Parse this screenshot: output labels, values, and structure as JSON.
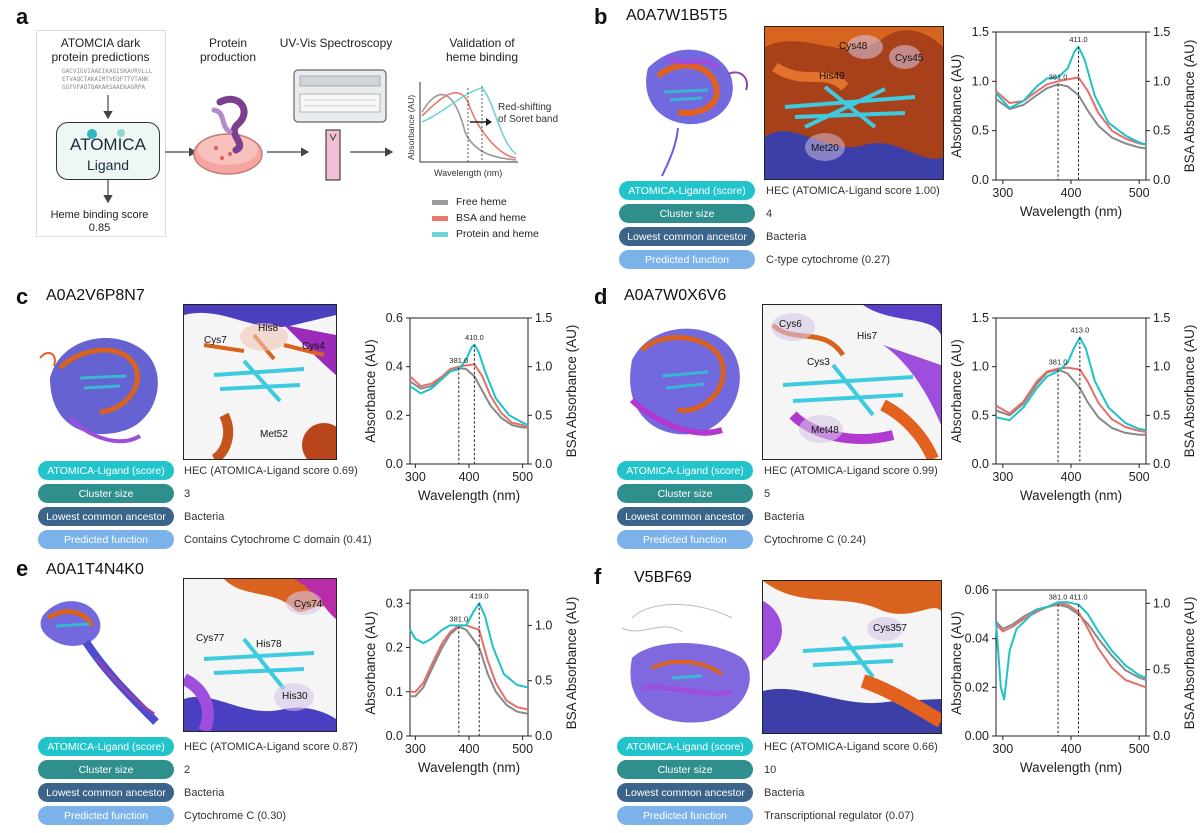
{
  "panel_a": {
    "letter": "a",
    "step1_title": "ATOMCIA dark\nprotein predictions",
    "seq": [
      "GACVIGVIAAEIKAGISKAVRVLLL",
      "ETVAQCTAKAIMTVEQFTTVTANK",
      "GGFVFAQTQAKARSAAEKAGRPA"
    ],
    "atomica_box_title": "ATOMICA",
    "atomica_box_sub": "Ligand",
    "score_label": "Heme binding score",
    "score_value": "0.85",
    "step2_title": "Protein\nproduction",
    "step3_title": "UV-Vis Spectroscopy",
    "step4_title": "Validation of\nheme binding",
    "mini_ylabel": "Absorbance (AU)",
    "mini_xlabel": "Wavelength (nm)",
    "annot": "Red-shifting\nof Soret band",
    "legend": [
      {
        "label": "Free heme",
        "color": "#9a9a9a"
      },
      {
        "label": "BSA and heme",
        "color": "#e9796e"
      },
      {
        "label": "Protein and heme",
        "color": "#6fd5d8"
      }
    ]
  },
  "row_labels": [
    "ATOMICA-Ligand (score)",
    "Cluster size",
    "Lowest common ancestor",
    "Predicted function"
  ],
  "panels": [
    {
      "key": "b",
      "letter": "b",
      "id": "A0A7W1B5T5",
      "residues": [
        "Cys48",
        "His49",
        "Cys45",
        "Met20"
      ],
      "values": [
        "HEC (ATOMICA-Ligand score 1.00)",
        "4",
        "Bacteria",
        "C-type cytochrome (0.27)"
      ]
    },
    {
      "key": "c",
      "letter": "c",
      "id": "A0A2V6P8N7",
      "residues": [
        "Cys7",
        "His8",
        "Cys4",
        "Met52"
      ],
      "values": [
        "HEC (ATOMICA-Ligand score 0.69)",
        "3",
        "Bacteria",
        "Contains Cytochrome C domain (0.41)"
      ]
    },
    {
      "key": "d",
      "letter": "d",
      "id": "A0A7W0X6V6",
      "residues": [
        "Cys6",
        "His7",
        "Cys3",
        "Met48"
      ],
      "values": [
        "HEC (ATOMICA-Ligand score 0.99)",
        "5",
        "Bacteria",
        "Cytochrome C (0.24)"
      ]
    },
    {
      "key": "e",
      "letter": "e",
      "id": "A0A1T4N4K0",
      "residues": [
        "Cys74",
        "Cys77",
        "His78",
        "His30"
      ],
      "values": [
        "HEC (ATOMICA-Ligand score 0.87)",
        "2",
        "Bacteria",
        "Cytochrome C (0.30)"
      ]
    },
    {
      "key": "f",
      "letter": "f",
      "id": "V5BF69",
      "residues": [
        "Cys357"
      ],
      "values": [
        "HEC (ATOMICA-Ligand score 0.66)",
        "10",
        "Bacteria",
        "Transcriptional regulator (0.07)"
      ]
    }
  ],
  "chart_data": [
    {
      "panel": "b",
      "type": "line",
      "xlabel": "Wavelength (nm)",
      "ylabel": "Absorbance (AU)",
      "y2label": "BSA Absorbance (AU)",
      "xlim": [
        290,
        510
      ],
      "ylim": [
        0,
        1.5
      ],
      "y2lim": [
        0,
        1.5
      ],
      "xticks": [
        "300",
        "400",
        "500"
      ],
      "yticks": [
        "0.0",
        "0.5",
        "1.0",
        "1.5"
      ],
      "y2ticks": [
        "0.0",
        "0.5",
        "1.0",
        "1.5"
      ],
      "peaks": [
        {
          "x": 381,
          "label": "381.0",
          "y": 0.97
        },
        {
          "x": 411,
          "label": "411.0",
          "y": 1.35
        }
      ],
      "series": [
        {
          "name": "Free heme",
          "color": "#888888",
          "x": [
            290,
            310,
            330,
            350,
            365,
            381,
            395,
            411,
            425,
            440,
            460,
            480,
            500,
            510
          ],
          "y": [
            0.82,
            0.72,
            0.76,
            0.86,
            0.93,
            0.97,
            0.95,
            0.86,
            0.7,
            0.55,
            0.43,
            0.37,
            0.33,
            0.32
          ]
        },
        {
          "name": "BSA and heme",
          "color": "#e46f6a",
          "x": [
            290,
            310,
            330,
            350,
            365,
            381,
            395,
            411,
            425,
            440,
            460,
            480,
            500,
            510
          ],
          "y": [
            0.9,
            0.78,
            0.8,
            0.9,
            0.97,
            1.0,
            1.02,
            1.04,
            0.9,
            0.68,
            0.5,
            0.42,
            0.37,
            0.36
          ]
        },
        {
          "name": "Protein and heme",
          "color": "#1cc3c8",
          "x": [
            290,
            310,
            330,
            350,
            365,
            381,
            395,
            405,
            411,
            420,
            435,
            455,
            480,
            500,
            510
          ],
          "y": [
            0.88,
            0.73,
            0.8,
            0.95,
            1.03,
            1.04,
            1.13,
            1.3,
            1.35,
            1.22,
            0.85,
            0.58,
            0.45,
            0.38,
            0.36
          ]
        }
      ]
    },
    {
      "panel": "c",
      "type": "line",
      "xlabel": "Wavelength (nm)",
      "ylabel": "Absorbance (AU)",
      "y2label": "BSA Absorbance (AU)",
      "xlim": [
        290,
        510
      ],
      "ylim": [
        0,
        0.6
      ],
      "y2lim": [
        0,
        1.5
      ],
      "xticks": [
        "300",
        "400",
        "500"
      ],
      "yticks": [
        "0.0",
        "0.2",
        "0.4",
        "0.6"
      ],
      "y2ticks": [
        "0.0",
        "0.5",
        "1.0",
        "1.5"
      ],
      "peaks": [
        {
          "x": 381,
          "label": "381.0",
          "y": 0.395
        },
        {
          "x": 410,
          "label": "410.0",
          "y": 0.49
        }
      ],
      "series": [
        {
          "name": "Free heme",
          "color": "#888888",
          "x": [
            290,
            310,
            330,
            350,
            365,
            381,
            395,
            410,
            425,
            440,
            460,
            480,
            500,
            510
          ],
          "y": [
            0.34,
            0.31,
            0.32,
            0.35,
            0.38,
            0.395,
            0.39,
            0.36,
            0.3,
            0.24,
            0.19,
            0.16,
            0.15,
            0.15
          ]
        },
        {
          "name": "BSA and heme",
          "color": "#e46f6a",
          "x": [
            290,
            310,
            330,
            350,
            365,
            381,
            395,
            410,
            425,
            440,
            460,
            480,
            500,
            510
          ],
          "y": [
            0.36,
            0.32,
            0.33,
            0.36,
            0.39,
            0.4,
            0.405,
            0.41,
            0.36,
            0.28,
            0.21,
            0.17,
            0.16,
            0.15
          ]
        },
        {
          "name": "Protein and heme",
          "color": "#1cc3c8",
          "x": [
            290,
            310,
            330,
            350,
            365,
            381,
            395,
            405,
            410,
            418,
            430,
            450,
            475,
            500,
            510
          ],
          "y": [
            0.32,
            0.29,
            0.31,
            0.35,
            0.38,
            0.39,
            0.43,
            0.48,
            0.49,
            0.46,
            0.38,
            0.27,
            0.2,
            0.17,
            0.16
          ]
        }
      ]
    },
    {
      "panel": "d",
      "type": "line",
      "xlabel": "Wavelength (nm)",
      "ylabel": "Absorbance (AU)",
      "y2label": "BSA Absorbance (AU)",
      "xlim": [
        290,
        510
      ],
      "ylim": [
        0,
        1.5
      ],
      "y2lim": [
        0,
        1.5
      ],
      "xticks": [
        "300",
        "400",
        "500"
      ],
      "yticks": [
        "0.0",
        "0.5",
        "1.0",
        "1.5"
      ],
      "y2ticks": [
        "0.0",
        "0.5",
        "1.0",
        "1.5"
      ],
      "peaks": [
        {
          "x": 381,
          "label": "381.0",
          "y": 0.97
        },
        {
          "x": 413,
          "label": "413.0",
          "y": 1.3
        }
      ],
      "series": [
        {
          "name": "Free heme",
          "color": "#888888",
          "x": [
            290,
            310,
            330,
            350,
            365,
            381,
            395,
            413,
            425,
            440,
            460,
            480,
            500,
            510
          ],
          "y": [
            0.55,
            0.5,
            0.62,
            0.82,
            0.94,
            0.97,
            0.93,
            0.78,
            0.63,
            0.48,
            0.37,
            0.32,
            0.3,
            0.3
          ]
        },
        {
          "name": "BSA and heme",
          "color": "#e46f6a",
          "x": [
            290,
            310,
            330,
            350,
            365,
            381,
            395,
            413,
            425,
            440,
            460,
            480,
            500,
            510
          ],
          "y": [
            0.6,
            0.52,
            0.64,
            0.85,
            0.95,
            0.98,
            0.99,
            0.97,
            0.84,
            0.63,
            0.46,
            0.38,
            0.34,
            0.33
          ]
        },
        {
          "name": "Protein and heme",
          "color": "#1cc3c8",
          "x": [
            290,
            310,
            330,
            350,
            365,
            381,
            395,
            405,
            413,
            422,
            435,
            455,
            480,
            500,
            510
          ],
          "y": [
            0.48,
            0.45,
            0.58,
            0.78,
            0.9,
            0.95,
            1.04,
            1.2,
            1.3,
            1.18,
            0.85,
            0.58,
            0.42,
            0.36,
            0.35
          ]
        }
      ]
    },
    {
      "panel": "e",
      "type": "line",
      "xlabel": "Wavelength (nm)",
      "ylabel": "Absorbance (AU)",
      "y2label": "BSA Absorbance (AU)",
      "xlim": [
        290,
        510
      ],
      "ylim": [
        0,
        0.33
      ],
      "y2lim": [
        0,
        1.32
      ],
      "xticks": [
        "300",
        "400",
        "500"
      ],
      "yticks": [
        "0.0",
        "0.1",
        "0.2",
        "0.3"
      ],
      "y2ticks": [
        "0.0",
        "0.5",
        "1.0"
      ],
      "peaks": [
        {
          "x": 381,
          "label": "381.0",
          "y": 0.247
        },
        {
          "x": 419,
          "label": "419.0",
          "y": 0.3
        }
      ],
      "series": [
        {
          "name": "Free heme",
          "color": "#888888",
          "x": [
            290,
            300,
            315,
            330,
            350,
            365,
            381,
            395,
            419,
            435,
            450,
            470,
            490,
            510
          ],
          "y": [
            0.09,
            0.09,
            0.11,
            0.15,
            0.2,
            0.23,
            0.247,
            0.24,
            0.2,
            0.14,
            0.1,
            0.07,
            0.055,
            0.05
          ]
        },
        {
          "name": "BSA and heme",
          "color": "#e46f6a",
          "x": [
            290,
            300,
            315,
            330,
            350,
            365,
            381,
            395,
            419,
            435,
            450,
            470,
            490,
            510
          ],
          "y": [
            0.1,
            0.1,
            0.12,
            0.16,
            0.21,
            0.235,
            0.25,
            0.25,
            0.24,
            0.17,
            0.12,
            0.08,
            0.065,
            0.06
          ]
        },
        {
          "name": "Protein and heme",
          "color": "#1cc3c8",
          "x": [
            290,
            300,
            315,
            330,
            350,
            365,
            381,
            395,
            408,
            419,
            430,
            445,
            465,
            490,
            510
          ],
          "y": [
            0.24,
            0.22,
            0.21,
            0.22,
            0.24,
            0.25,
            0.25,
            0.25,
            0.28,
            0.3,
            0.27,
            0.2,
            0.14,
            0.115,
            0.11
          ]
        }
      ]
    },
    {
      "panel": "f",
      "type": "line",
      "xlabel": "Wavelength (nm)",
      "ylabel": "Absorbance (AU)",
      "y2label": "BSA Absorbance (AU)",
      "xlim": [
        290,
        510
      ],
      "ylim": [
        0,
        0.06
      ],
      "y2lim": [
        0,
        1.1
      ],
      "xticks": [
        "300",
        "400",
        "500"
      ],
      "yticks": [
        "0.00",
        "0.02",
        "0.04",
        "0.06"
      ],
      "y2ticks": [
        "0.0",
        "0.5",
        "1.0"
      ],
      "peaks": [
        {
          "x": 381,
          "label": "381.0",
          "y": 0.054
        },
        {
          "x": 411,
          "label": "411.0",
          "y": 0.054
        }
      ],
      "series": [
        {
          "name": "Free heme",
          "color": "#888888",
          "x": [
            290,
            300,
            315,
            330,
            350,
            365,
            381,
            395,
            411,
            425,
            440,
            460,
            480,
            500,
            510
          ],
          "y": [
            0.047,
            0.044,
            0.046,
            0.049,
            0.052,
            0.053,
            0.054,
            0.053,
            0.05,
            0.046,
            0.04,
            0.033,
            0.027,
            0.024,
            0.023
          ]
        },
        {
          "name": "BSA and heme",
          "color": "#e46f6a",
          "x": [
            290,
            300,
            315,
            330,
            350,
            365,
            381,
            395,
            411,
            425,
            440,
            460,
            480,
            500,
            510
          ],
          "y": [
            0.046,
            0.043,
            0.045,
            0.048,
            0.051,
            0.053,
            0.0545,
            0.054,
            0.051,
            0.044,
            0.036,
            0.028,
            0.023,
            0.021,
            0.02
          ]
        },
        {
          "name": "Protein and heme",
          "color": "#1cc3c8",
          "x": [
            290,
            297,
            302,
            310,
            320,
            335,
            350,
            365,
            381,
            395,
            411,
            425,
            440,
            460,
            480,
            500,
            510
          ],
          "y": [
            0.047,
            0.02,
            0.015,
            0.035,
            0.044,
            0.048,
            0.052,
            0.053,
            0.055,
            0.055,
            0.054,
            0.05,
            0.043,
            0.035,
            0.029,
            0.025,
            0.024
          ]
        }
      ]
    }
  ]
}
